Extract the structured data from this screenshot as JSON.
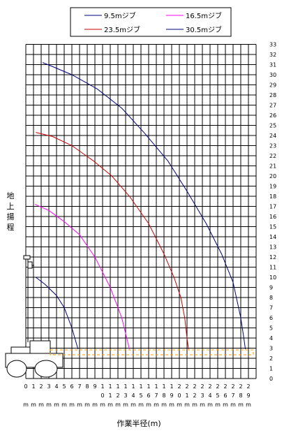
{
  "chart_data": {
    "type": "line",
    "xlabel": "作業半径(m)",
    "ylabel": [
      "地",
      "上",
      "揚",
      "程"
    ],
    "xlim": [
      0,
      30
    ],
    "ylim": [
      0,
      33
    ],
    "grid": true,
    "legend_position": "top",
    "x_tick_labels": [
      [
        "0",
        "m"
      ],
      [
        "1",
        "m"
      ],
      [
        "2",
        "m"
      ],
      [
        "3",
        "m"
      ],
      [
        "4",
        "m"
      ],
      [
        "5",
        "m"
      ],
      [
        "6",
        "m"
      ],
      [
        "7",
        "m"
      ],
      [
        "8",
        "m"
      ],
      [
        "9",
        "m"
      ],
      [
        "1",
        "0",
        "m"
      ],
      [
        "1",
        "1",
        "m"
      ],
      [
        "1",
        "2",
        "m"
      ],
      [
        "1",
        "3",
        "m"
      ],
      [
        "1",
        "4",
        "m"
      ],
      [
        "1",
        "5",
        "m"
      ],
      [
        "1",
        "6",
        "m"
      ],
      [
        "1",
        "7",
        "m"
      ],
      [
        "1",
        "8",
        "m"
      ],
      [
        "1",
        "9",
        "m"
      ],
      [
        "2",
        "0",
        "m"
      ],
      [
        "2",
        "1",
        "m"
      ],
      [
        "2",
        "2",
        "m"
      ],
      [
        "2",
        "3",
        "m"
      ],
      [
        "2",
        "4",
        "m"
      ],
      [
        "2",
        "5",
        "m"
      ],
      [
        "2",
        "6",
        "m"
      ],
      [
        "2",
        "7",
        "m"
      ],
      [
        "2",
        "8",
        "m"
      ],
      [
        "2",
        "9",
        "m"
      ]
    ],
    "y_tick_labels": [
      "0",
      "1",
      "2",
      "3",
      "4",
      "5",
      "6",
      "7",
      "8",
      "9",
      "10",
      "11",
      "12",
      "13",
      "14",
      "15",
      "16",
      "17",
      "18",
      "19",
      "20",
      "21",
      "22",
      "23",
      "24",
      "25",
      "26",
      "27",
      "28",
      "29",
      "30",
      "31",
      "32",
      "33"
    ],
    "series": [
      {
        "name": "9.5mジブ",
        "color": "#000080",
        "points": [
          [
            1.3,
            10
          ],
          [
            2.5,
            9.3
          ],
          [
            4,
            8.2
          ],
          [
            5,
            7
          ],
          [
            6,
            5
          ],
          [
            6.8,
            2.9
          ]
        ]
      },
      {
        "name": "16.5mジブ",
        "color": "#ff00ff",
        "points": [
          [
            1.2,
            17.2
          ],
          [
            3,
            16.6
          ],
          [
            5,
            15.5
          ],
          [
            7,
            14.2
          ],
          [
            9,
            12
          ],
          [
            11,
            9
          ],
          [
            12.5,
            6
          ],
          [
            13.5,
            2.9
          ]
        ]
      },
      {
        "name": "23.5mジブ",
        "color": "#cc0000",
        "points": [
          [
            1.3,
            24.3
          ],
          [
            3.5,
            23.9
          ],
          [
            6,
            23
          ],
          [
            8.8,
            21.5
          ],
          [
            11.2,
            20
          ],
          [
            13.5,
            18
          ],
          [
            16,
            15.3
          ],
          [
            18,
            12.3
          ],
          [
            19.3,
            10
          ],
          [
            20.2,
            8
          ],
          [
            20.7,
            6
          ],
          [
            21,
            4
          ],
          [
            21.2,
            2.9
          ]
        ]
      },
      {
        "name": "30.5mジブ",
        "color": "#000080",
        "points": [
          [
            2.2,
            31.2
          ],
          [
            3.5,
            30.8
          ],
          [
            6,
            30
          ],
          [
            9.3,
            28.6
          ],
          [
            12.5,
            26.7
          ],
          [
            15.5,
            24.2
          ],
          [
            18.5,
            21.5
          ],
          [
            21,
            18.5
          ],
          [
            23.5,
            15.3
          ],
          [
            25.5,
            12.3
          ],
          [
            27,
            9.5
          ],
          [
            28,
            6
          ],
          [
            28.4,
            4
          ],
          [
            28.6,
            2.9
          ]
        ]
      }
    ]
  }
}
